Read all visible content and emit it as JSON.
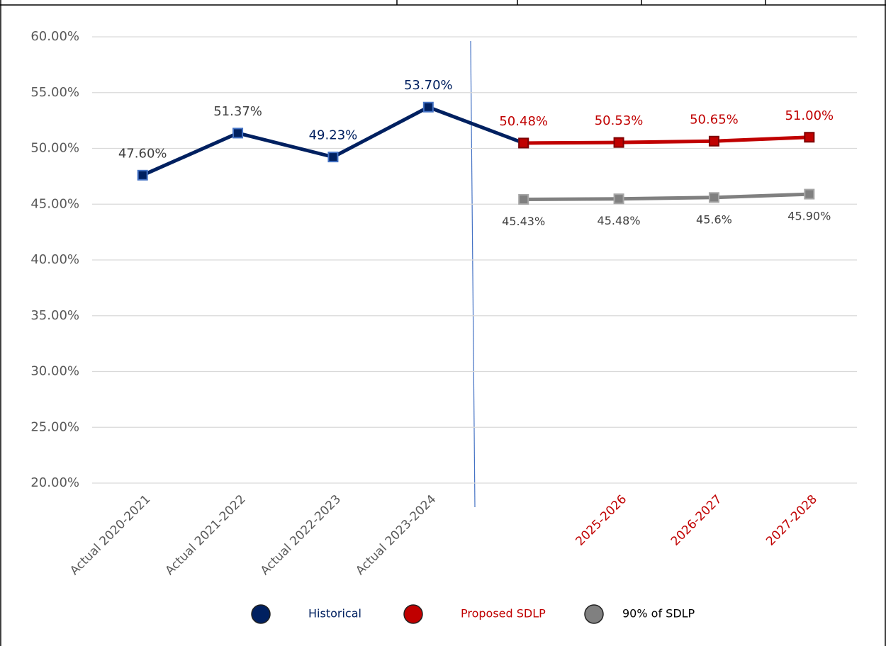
{
  "chart_data": {
    "type": "line",
    "categories": [
      "Actual 2020-2021",
      "Actual 2021-2022",
      "Actual 2022-2023",
      "Actual 2023-2024",
      null,
      "2025-2026",
      "2026-2027",
      "2027-2028"
    ],
    "category_label_colors": [
      "#595959",
      "#595959",
      "#595959",
      "#595959",
      null,
      "#c00000",
      "#c00000",
      "#c00000"
    ],
    "series": [
      {
        "name": "Historical",
        "color": "#002060",
        "marker_stroke": "#4472c4",
        "label_position": "above",
        "values": [
          47.6,
          51.37,
          49.23,
          53.7,
          50.48,
          null,
          null,
          null
        ],
        "value_labels": [
          "47.60%",
          "51.37%",
          "49.23%",
          "53.70%",
          null,
          null,
          null,
          null
        ],
        "value_label_colors": [
          "#404040",
          "#404040",
          "#002060",
          "#002060",
          null,
          null,
          null,
          null
        ]
      },
      {
        "name": "Proposed SDLP",
        "color": "#c00000",
        "marker_stroke": "#7f0000",
        "label_position": "above",
        "values": [
          null,
          null,
          null,
          null,
          50.48,
          50.53,
          50.65,
          51.0
        ],
        "value_labels": [
          null,
          null,
          null,
          null,
          "50.48%",
          "50.53%",
          "50.65%",
          "51.00%"
        ],
        "value_label_colors": [
          null,
          null,
          null,
          null,
          "#c00000",
          "#c00000",
          "#c00000",
          "#c00000"
        ]
      },
      {
        "name": "90% of SDLP",
        "color": "#808080",
        "marker_stroke": "#a6a6a6",
        "label_position": "below",
        "values": [
          null,
          null,
          null,
          null,
          45.43,
          45.48,
          45.6,
          45.9
        ],
        "value_labels": [
          null,
          null,
          null,
          null,
          "45.43%",
          "45.48%",
          "45.6%",
          "45.90%"
        ],
        "value_label_colors": [
          null,
          null,
          null,
          null,
          "#404040",
          "#404040",
          "#404040",
          "#404040"
        ]
      }
    ],
    "ylim": [
      20,
      60
    ],
    "yticks": [
      {
        "value": 20,
        "label": "20.00%"
      },
      {
        "value": 25,
        "label": "25.00%"
      },
      {
        "value": 30,
        "label": "30.00%"
      },
      {
        "value": 35,
        "label": "35.00%"
      },
      {
        "value": 40,
        "label": "40.00%"
      },
      {
        "value": 45,
        "label": "45.00%"
      },
      {
        "value": 50,
        "label": "50.00%"
      },
      {
        "value": 55,
        "label": "55.00%"
      },
      {
        "value": 60,
        "label": "60.00%"
      }
    ],
    "grid": true,
    "legend": "bottom"
  }
}
